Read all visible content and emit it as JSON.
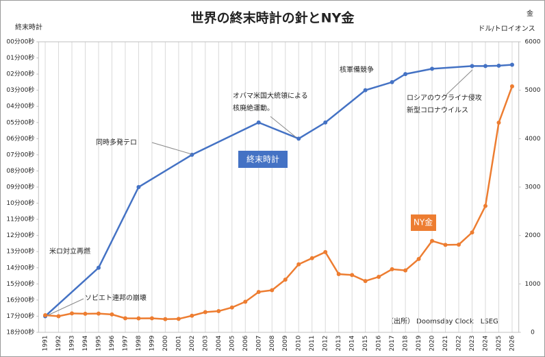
{
  "chart_data": {
    "type": "line",
    "title": "世界の終末時計の針とNY金",
    "y_label": "終末時計",
    "y2_label": "金",
    "y2_unit": "ドル/トロイオンス",
    "source": "（出所） Doomsday Clock　LSEG",
    "xlim": [
      1990.5,
      2026.5
    ],
    "xticks": [
      1991,
      1992,
      1993,
      1994,
      1995,
      1996,
      1997,
      1998,
      1999,
      2000,
      2001,
      2002,
      2003,
      2004,
      2005,
      2006,
      2007,
      2008,
      2009,
      2010,
      2011,
      2012,
      2013,
      2014,
      2015,
      2016,
      2017,
      2018,
      2019,
      2020,
      2021,
      2022,
      2023,
      2024,
      2025,
      2026
    ],
    "ylim": [
      18,
      0
    ],
    "yticks": [
      {
        "value": 0,
        "label": "00分00秒"
      },
      {
        "value": 1,
        "label": "01分00秒"
      },
      {
        "value": 2,
        "label": "02分00秒"
      },
      {
        "value": 3,
        "label": "03分00秒"
      },
      {
        "value": 4,
        "label": "04分00秒"
      },
      {
        "value": 5,
        "label": "05分00秒"
      },
      {
        "value": 6,
        "label": "06分00秒"
      },
      {
        "value": 7,
        "label": "07分00秒"
      },
      {
        "value": 8,
        "label": "08分00秒"
      },
      {
        "value": 9,
        "label": "09分00秒"
      },
      {
        "value": 10,
        "label": "10分00秒"
      },
      {
        "value": 11,
        "label": "11分00秒"
      },
      {
        "value": 12,
        "label": "12分00秒"
      },
      {
        "value": 13,
        "label": "13分00秒"
      },
      {
        "value": 14,
        "label": "14分00秒"
      },
      {
        "value": 15,
        "label": "15分00秒"
      },
      {
        "value": 16,
        "label": "16分00秒"
      },
      {
        "value": 17,
        "label": "17分00秒"
      },
      {
        "value": 18,
        "label": "18分00秒"
      }
    ],
    "y2lim": [
      0,
      6000
    ],
    "y2ticks": [
      0,
      1000,
      2000,
      3000,
      4000,
      5000,
      6000
    ],
    "grid": true,
    "series": [
      {
        "name": "終末時計",
        "color": "#4472c4",
        "axis": "y",
        "x": [
          1991,
          1995,
          1998,
          2002,
          2007,
          2010,
          2012,
          2015,
          2017,
          2018,
          2020,
          2023,
          2024,
          2025,
          2026
        ],
        "values": [
          17,
          14,
          9,
          7,
          5,
          6,
          5,
          3,
          2.5,
          2,
          1.67,
          1.5,
          1.5,
          1.48,
          1.42
        ]
      },
      {
        "name": "NY金",
        "color": "#ed7d31",
        "axis": "y2",
        "x": [
          1991,
          1992,
          1993,
          1994,
          1995,
          1996,
          1997,
          1998,
          1999,
          2000,
          2001,
          2002,
          2003,
          2004,
          2005,
          2006,
          2007,
          2008,
          2009,
          2010,
          2011,
          2012,
          2013,
          2014,
          2015,
          2016,
          2017,
          2018,
          2019,
          2020,
          2021,
          2022,
          2023,
          2024,
          2025,
          2026
        ],
        "values": [
          353,
          333,
          391,
          383,
          387,
          369,
          290,
          288,
          290,
          273,
          277,
          343,
          417,
          438,
          513,
          632,
          834,
          870,
          1088,
          1405,
          1531,
          1657,
          1202,
          1184,
          1060,
          1146,
          1303,
          1279,
          1515,
          1888,
          1806,
          1812,
          2062,
          2610,
          4330,
          5080
        ]
      }
    ],
    "annotations": [
      "同時多発テロ",
      "オバマ米国大統領による",
      "核廃絶運動。",
      "核軍備競争",
      "ロシアのウクライナ侵攻",
      "新型コロナウイルス",
      "米ロ対立再燃",
      "ソビエト連邦の崩壊"
    ]
  }
}
